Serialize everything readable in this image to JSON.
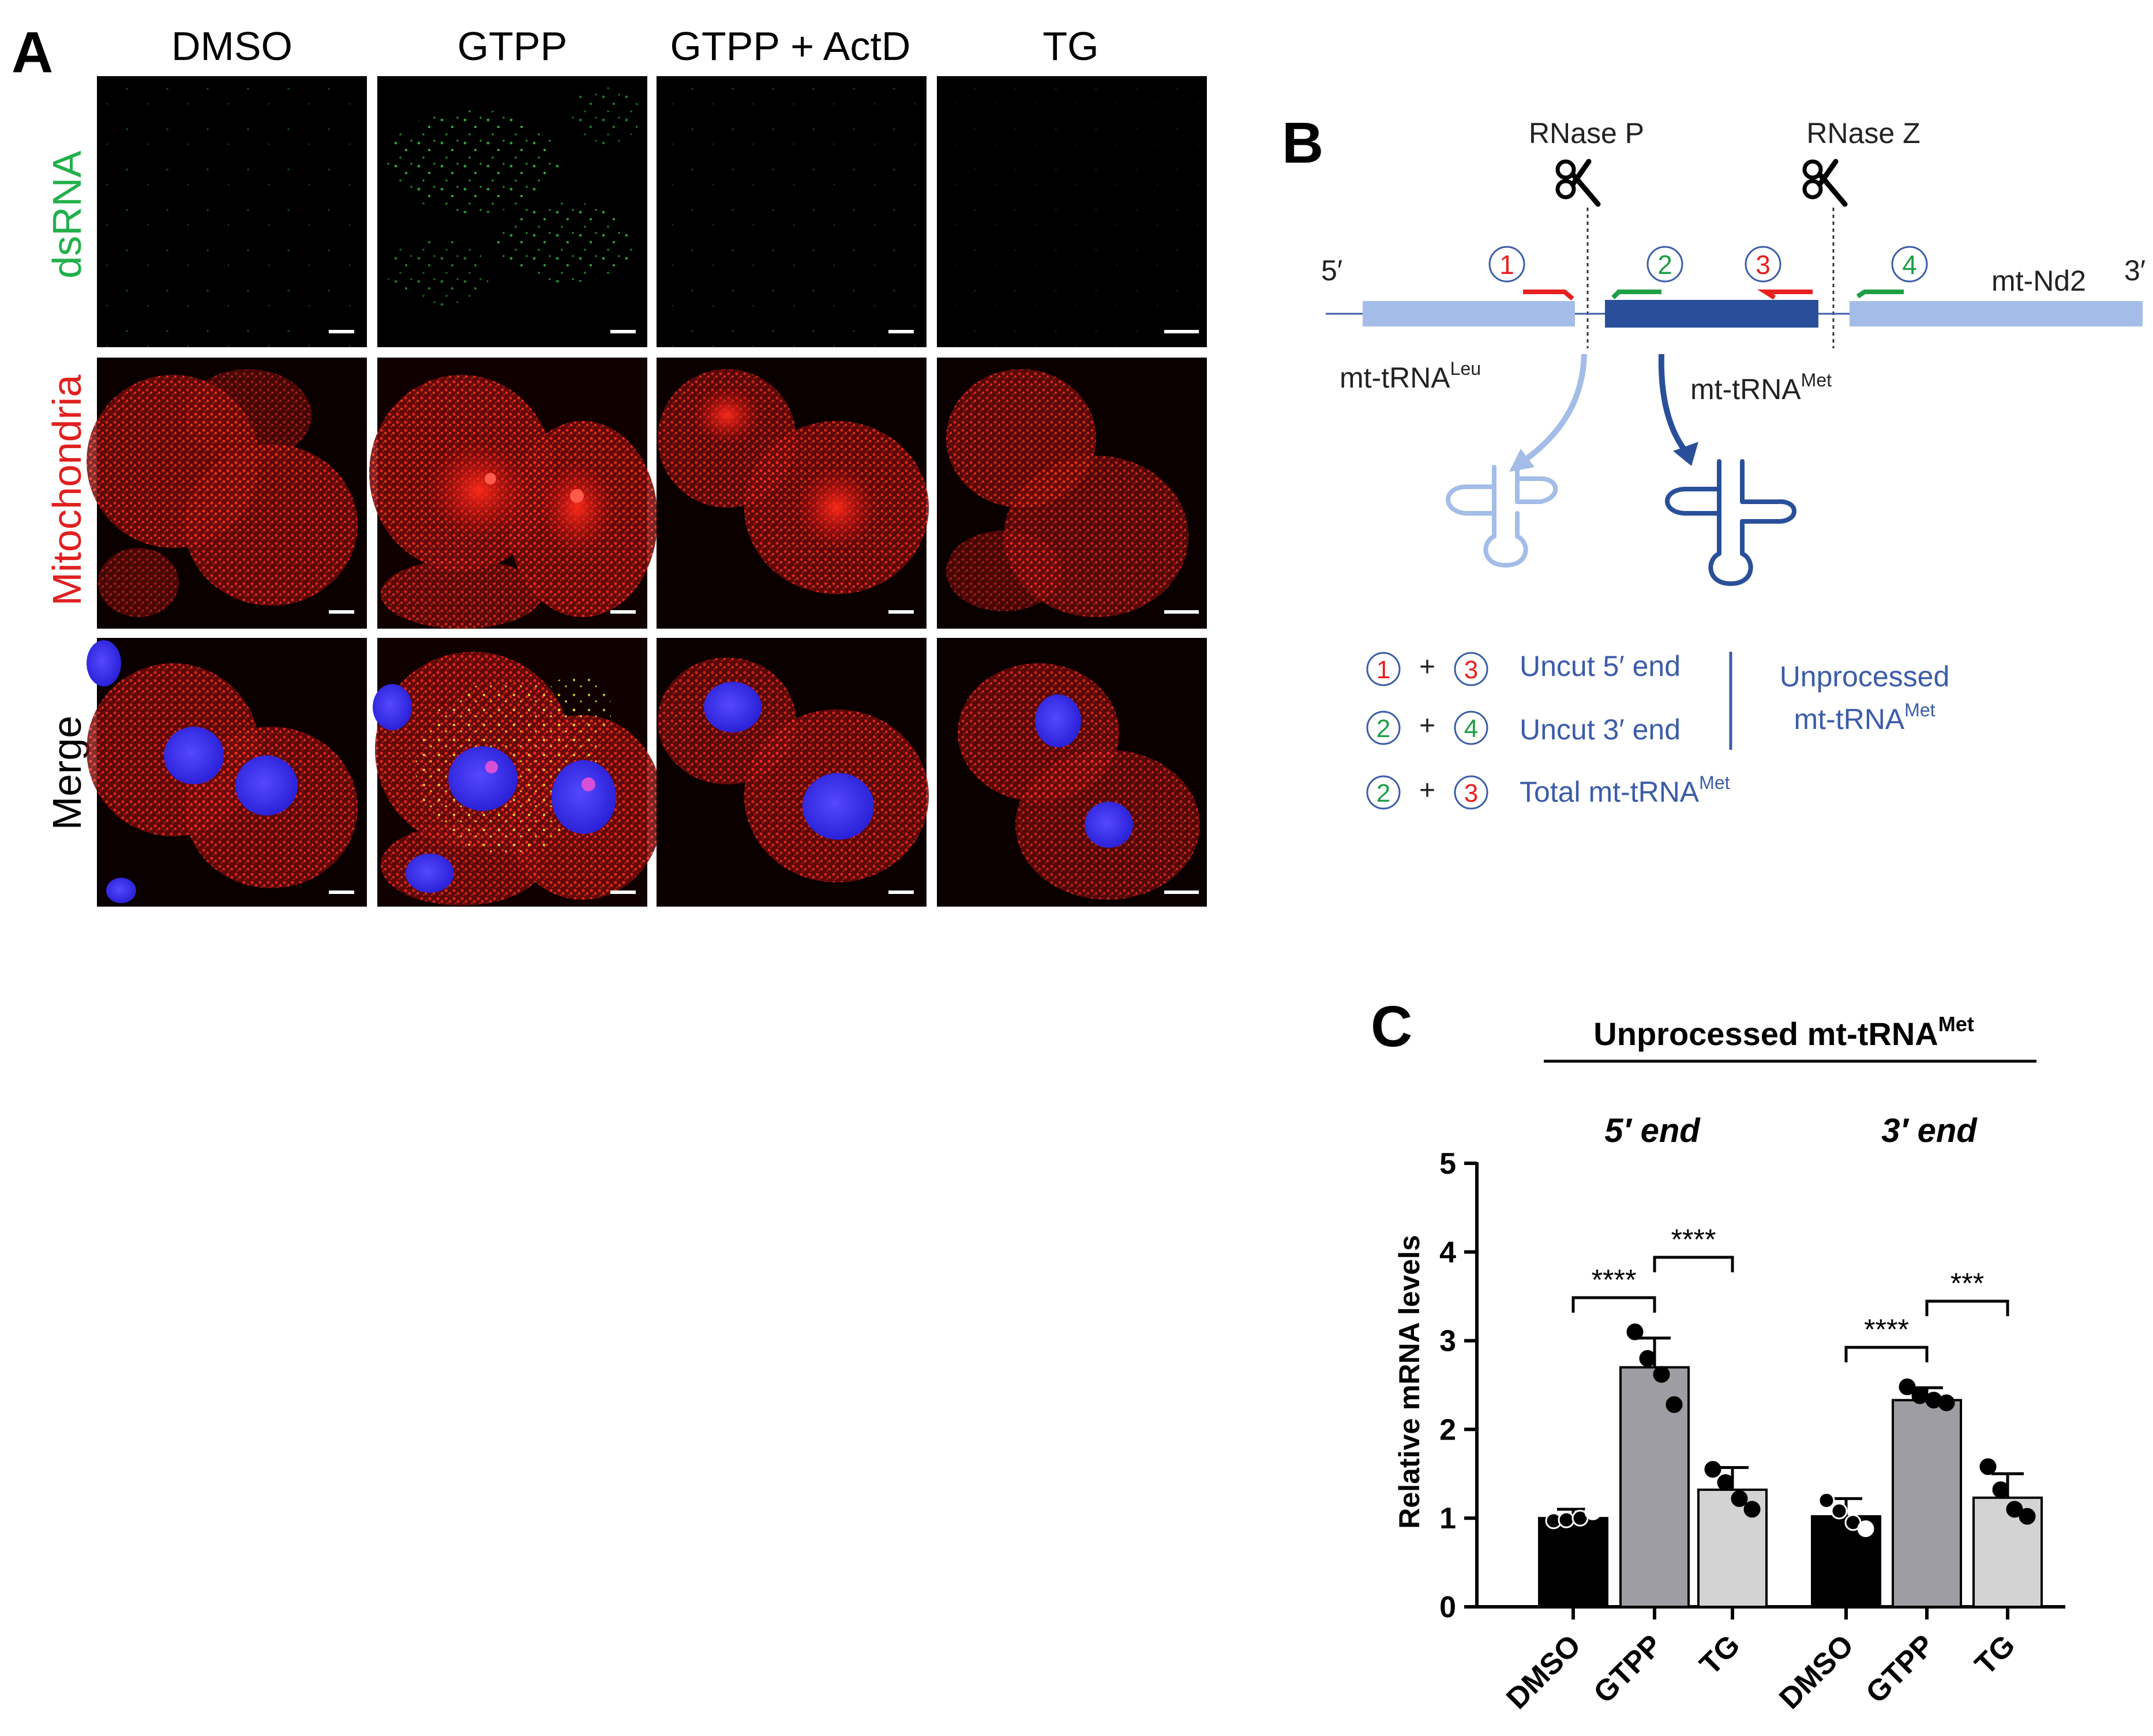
{
  "panel_a": {
    "letter": "A",
    "columns": [
      "DMSO",
      "GTPP",
      "GTPP + ActD",
      "TG"
    ],
    "rows": [
      "dsRNA",
      "Mitochondria",
      "Merge"
    ],
    "colors": {
      "dsRNA": "#22b04b",
      "Mitochondria": "#e02020",
      "Merge": "#000000",
      "nucleus": "#2a2ff0"
    }
  },
  "panel_b": {
    "letter": "B",
    "enzyme_p": "RNase P",
    "enzyme_z": "RNase Z",
    "five_prime": "5′",
    "three_prime": "3′",
    "gene": "mt-Nd2",
    "trna_leu": "mt-tRNA",
    "trna_leu_sup": "Leu",
    "trna_met": "mt-tRNA",
    "trna_met_sup": "Met",
    "primers": [
      "1",
      "2",
      "3",
      "4"
    ],
    "plus": "+",
    "legend": [
      {
        "a": "1",
        "b": "3",
        "label": "Uncut 5′ end"
      },
      {
        "a": "2",
        "b": "4",
        "label": "Uncut 3′ end"
      },
      {
        "a": "2",
        "b": "3",
        "label": "Total mt-tRNA",
        "sup": "Met"
      }
    ],
    "bracket_label_1": "Unprocessed",
    "bracket_label_2": "mt-tRNA",
    "bracket_label_2_sup": "Met",
    "colors": {
      "light_blue": "#a3bde8",
      "dark_blue": "#2a4f9a",
      "text_blue": "#3b5ca8",
      "red": "#e8201f",
      "green": "#1e9f44"
    }
  },
  "panel_c": {
    "letter": "C",
    "title": "Unprocessed mt-tRNA",
    "title_sup": "Met",
    "group_5": "5′ end",
    "group_3": "3′ end",
    "sig_labels": [
      "****",
      "****",
      "****",
      "***"
    ]
  },
  "chart_data": {
    "type": "bar",
    "ylabel": "Relative mRNA levels",
    "ylim": [
      0,
      5
    ],
    "yticks": [
      "0",
      "1",
      "2",
      "3",
      "4",
      "5"
    ],
    "categories": [
      "DMSO",
      "GTPP",
      "TG",
      "DMSO",
      "GTPP",
      "TG"
    ],
    "groups": [
      "5′ end",
      "3′ end"
    ],
    "values": [
      1.0,
      2.7,
      1.32,
      1.02,
      2.33,
      1.23
    ],
    "errors": [
      0.1,
      0.33,
      0.25,
      0.2,
      0.14,
      0.27
    ],
    "points": [
      [
        0.97,
        0.98,
        1.0,
        1.07
      ],
      [
        3.1,
        2.8,
        2.62,
        2.28
      ],
      [
        1.55,
        1.4,
        1.22,
        1.1
      ],
      [
        1.2,
        1.08,
        0.95,
        0.88
      ],
      [
        2.48,
        2.38,
        2.33,
        2.3
      ],
      [
        1.58,
        1.32,
        1.1,
        1.02
      ]
    ],
    "bar_colors": [
      "#000000",
      "#9d9da3",
      "#d3d3d3",
      "#000000",
      "#9d9da3",
      "#d3d3d3"
    ],
    "significance": [
      {
        "from": 0,
        "to": 1,
        "label": "****"
      },
      {
        "from": 1,
        "to": 2,
        "label": "****"
      },
      {
        "from": 3,
        "to": 4,
        "label": "****"
      },
      {
        "from": 4,
        "to": 5,
        "label": "***"
      }
    ]
  }
}
